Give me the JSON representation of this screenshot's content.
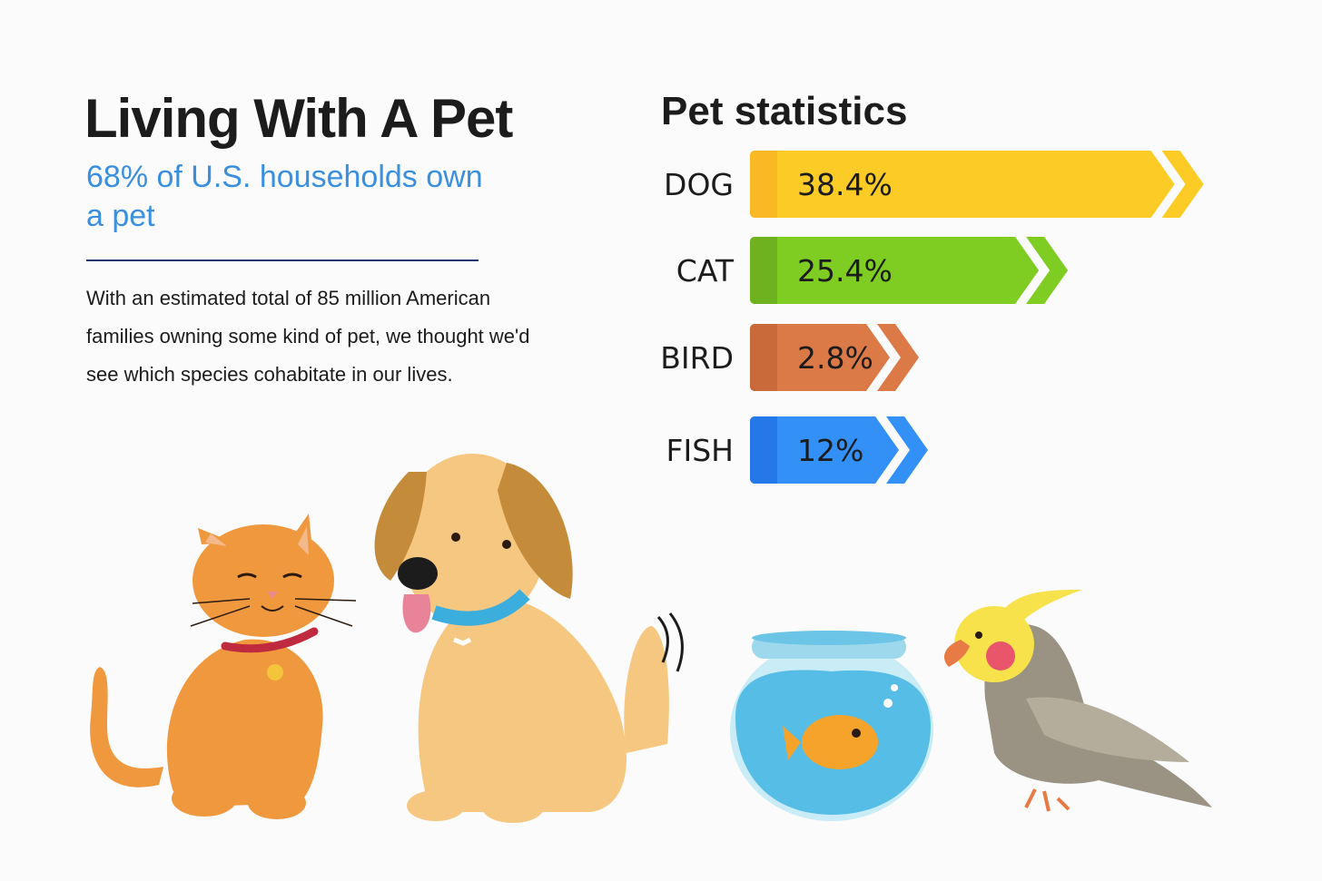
{
  "header": {
    "title": "Living With A Pet",
    "subtitle": "68% of U.S. households own a pet",
    "body": "With an estimated total of 85 million American families owning some kind of pet, we thought we'd see which species cohabitate in our lives."
  },
  "chart_data": {
    "type": "bar",
    "title": "Pet statistics",
    "categories": [
      "DOG",
      "CAT",
      "BIRD",
      "FISH"
    ],
    "values": [
      38.4,
      25.4,
      2.8,
      12
    ],
    "value_labels": [
      "38.4%",
      "25.4%",
      "2.8%",
      "12%"
    ],
    "colors": [
      "#fccb26",
      "#7fcd23",
      "#db7a47",
      "#3390f7"
    ],
    "accent_colors": [
      "#fbb825",
      "#6eb31f",
      "#c96a3a",
      "#2677e8"
    ],
    "orientation": "horizontal",
    "grid": false
  },
  "illustrations": [
    "cat",
    "dog",
    "fishbowl",
    "cockatiel"
  ]
}
